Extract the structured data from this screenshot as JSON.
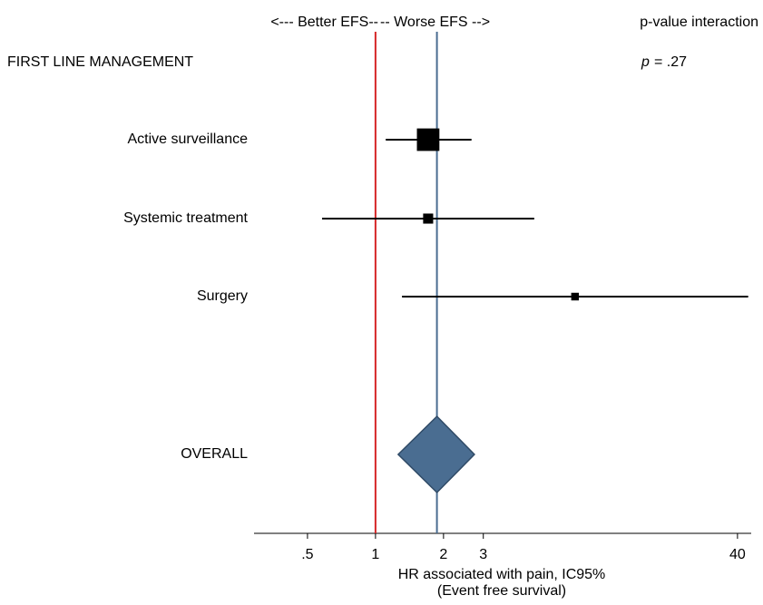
{
  "chart_data": {
    "type": "forest",
    "header_left": "<--- Better EFS--",
    "header_right": "-- Worse EFS -->",
    "p_header": "p-value interaction",
    "group_label": "FIRST LINE MANAGEMENT",
    "p_symbol": "p",
    "p_text": "=  .27",
    "rows": [
      {
        "label": "Active surveillance",
        "estimate": 1.71,
        "ci_low": 1.11,
        "ci_high": 2.66,
        "weight": 60
      },
      {
        "label": "Systemic treatment",
        "estimate": 1.71,
        "ci_low": 0.58,
        "ci_high": 5.04,
        "weight": 12
      },
      {
        "label": "Surgery",
        "estimate": 7.64,
        "ci_low": 1.31,
        "ci_high": 44.6,
        "weight": 7
      }
    ],
    "overall": {
      "label": "OVERALL",
      "estimate": 1.87,
      "ci_low": 1.26,
      "ci_high": 2.74
    },
    "reference_value": 1,
    "reference_color": "#d62728",
    "overall_color": "#4a6d91",
    "marker_color": "#000000",
    "xlim": [
      0.29,
      46
    ],
    "xscale": "log",
    "xticks": [
      {
        "value": 0.5,
        "label": ".5"
      },
      1,
      2,
      3,
      40
    ],
    "xlabel": "HR associated with pain, IC95%",
    "xlabel2": "(Event free survival)"
  }
}
